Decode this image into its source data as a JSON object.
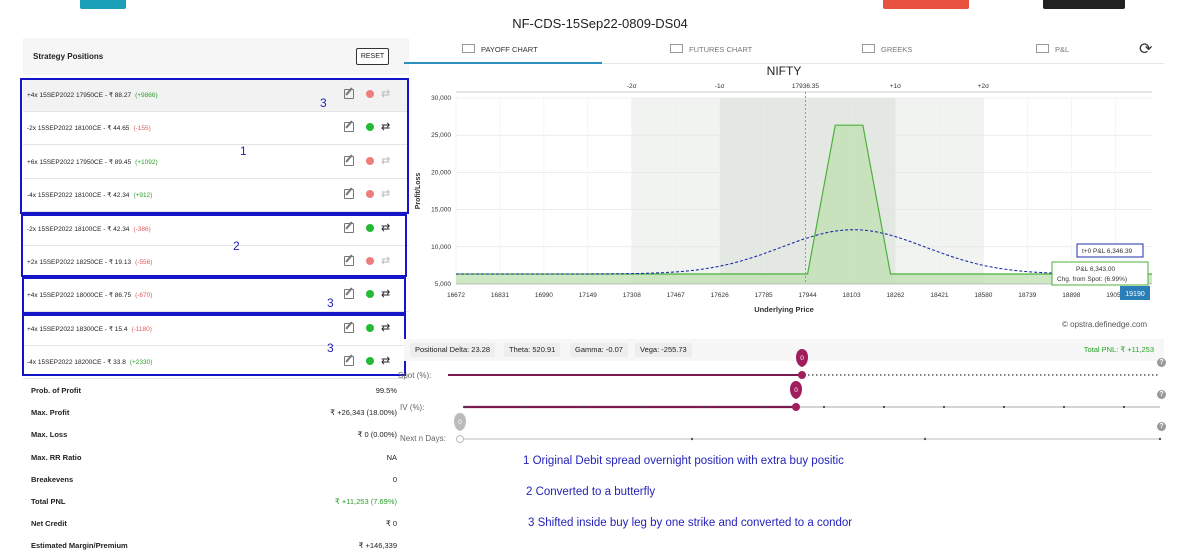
{
  "title": "NF-CDS-15Sep22-0809-DS04",
  "left_panel": {
    "title": "Strategy Positions",
    "reset_label": "RESET",
    "positions": [
      {
        "text": "+4x  15SEP2022  17950CE  - ₹ 88.27",
        "pnl": "(+9866)",
        "pnl_sign": "pos",
        "active": false
      },
      {
        "text": "-2x  15SEP2022  18100CE  - ₹ 44.65",
        "pnl": "(-155)",
        "pnl_sign": "neg",
        "active": true
      },
      {
        "text": "+6x  15SEP2022  17950CE  - ₹ 89.45",
        "pnl": "(+1092)",
        "pnl_sign": "pos",
        "active": false
      },
      {
        "text": "-4x  15SEP2022  18100CE  - ₹ 42.34",
        "pnl": "(+912)",
        "pnl_sign": "pos",
        "active": false
      },
      {
        "text": "-2x  15SEP2022  18100CE  - ₹ 42.34",
        "pnl": "(-386)",
        "pnl_sign": "neg",
        "active": true
      },
      {
        "text": "+2x  15SEP2022  18250CE  - ₹ 19.13",
        "pnl": "(-556)",
        "pnl_sign": "neg",
        "active": false
      },
      {
        "text": "+4x  15SEP2022  18000CE  - ₹ 86.75",
        "pnl": "(-670)",
        "pnl_sign": "neg",
        "active": true
      },
      {
        "text": "+4x  15SEP2022  18300CE  - ₹ 15.4",
        "pnl": "(-1180)",
        "pnl_sign": "neg",
        "active": true
      },
      {
        "text": "-4x  15SEP2022  18200CE  - ₹ 33.8",
        "pnl": "(+2330)",
        "pnl_sign": "pos",
        "active": true
      }
    ],
    "stats": [
      {
        "label": "Prob. of Profit",
        "value": "99.5%",
        "green": false
      },
      {
        "label": "Max. Profit",
        "value": "₹ +26,343 (18.00%)",
        "green": false
      },
      {
        "label": "Max. Loss",
        "value": "₹ 0 (0.00%)",
        "green": false
      },
      {
        "label": "Max. RR Ratio",
        "value": "NA",
        "green": false
      },
      {
        "label": "Breakevens",
        "value": "0",
        "green": false
      },
      {
        "label": "Total PNL",
        "value": "₹ +11,253 (7.69%)",
        "green": true
      },
      {
        "label": "Net Credit",
        "value": "₹ 0",
        "green": false
      },
      {
        "label": "Estimated Margin/Premium",
        "value": "₹ +146,339",
        "green": false
      }
    ]
  },
  "tabs": [
    {
      "label": "PAYOFF CHART",
      "icon": "area-chart-icon",
      "active": true
    },
    {
      "label": "FUTURES CHART",
      "icon": "chart-icon",
      "active": false
    },
    {
      "label": "GREEKS",
      "icon": "table-icon",
      "active": false
    },
    {
      "label": "P&L",
      "icon": "grid-icon",
      "active": false
    }
  ],
  "chart_data": {
    "type": "area",
    "title": "NIFTY",
    "xlabel": "Underlying Price",
    "ylabel": "Profit/Loss",
    "ylim": [
      5000,
      30000
    ],
    "y_ticks": [
      "5,000",
      "10,000",
      "15,000",
      "20,000",
      "25,000",
      "30,000"
    ],
    "x_ticks": [
      "16672",
      "16831",
      "16990",
      "17149",
      "17308",
      "17467",
      "17626",
      "17785",
      "17944",
      "18103",
      "18262",
      "18421",
      "18580",
      "18739",
      "18898",
      "19057"
    ],
    "sigma_labels": [
      "-2σ",
      "-1σ",
      "17936.35",
      "+1σ",
      "+2σ"
    ],
    "spot": 17936.35,
    "current_price_badge": "19190",
    "payoff_expiry": [
      [
        16672,
        6343
      ],
      [
        17944,
        6343
      ],
      [
        18044,
        26343
      ],
      [
        18144,
        26343
      ],
      [
        18244,
        6343
      ],
      [
        19190,
        6343
      ]
    ],
    "payoff_t0_peak": 12300,
    "tooltips": {
      "t0": "t+0 P&L 6,346.39",
      "expiry": "P&L 6,343.00",
      "change": "Chg. from Spot: (6.99%)"
    }
  },
  "credit": "© opstra.definedge.com",
  "greeks": {
    "delta": "Positional Delta: 23.28",
    "theta": "Theta: 520.91",
    "gamma": "Gamma: -0.07",
    "vega": "Vega: -255.73",
    "total_pnl": "Total PNL: ₹ +11,253"
  },
  "sliders": {
    "spot_label": "Spot (%):",
    "spot_value": "0",
    "iv_label": "IV (%):",
    "iv_value": "0",
    "days_label": "Next n Days:",
    "days_value": "0"
  },
  "annotations": {
    "box1_mark": "3",
    "box1_center": "1",
    "box2": "2",
    "box3": "3",
    "box4": "3",
    "note1": "1 Original Debit spread overnight position with extra buy positic",
    "note2": "2 Converted to a butterfly",
    "note3": "3  Shifted inside buy leg by one strike and converted to a condor"
  }
}
